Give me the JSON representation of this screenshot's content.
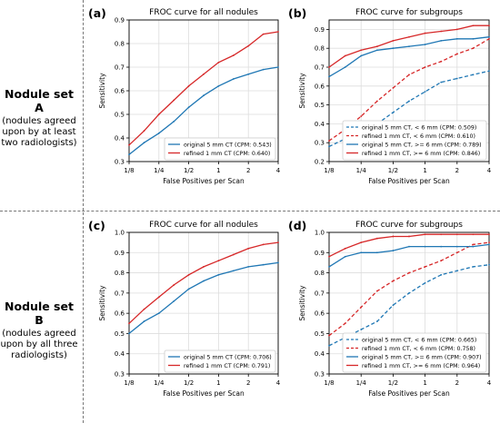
{
  "row_labels": [
    {
      "title": "Nodule set A",
      "lines": [
        "(nodules agreed",
        "upon by at least",
        "two radiologists)"
      ]
    },
    {
      "title": "Nodule set B",
      "lines": [
        "(nodules agreed",
        "upon by all three",
        "radiologists)"
      ]
    }
  ],
  "colors": {
    "blue": "#1f77b4",
    "red": "#d62728",
    "grid": "#dddddd"
  },
  "chart_data": [
    {
      "panel": "(a)",
      "type": "line",
      "title": "FROC curve for all nodules",
      "xlabel": "False Positives per Scan",
      "ylabel": "Sensitivity",
      "xscale": "log2",
      "x_ticks": [
        "1/8",
        "1/4",
        "1/2",
        "1",
        "2",
        "4"
      ],
      "ylim": [
        0.3,
        0.9
      ],
      "y_ticks": [
        "0.3",
        "0.4",
        "0.5",
        "0.6",
        "0.7",
        "0.8",
        "0.9"
      ],
      "grid": true,
      "legend": "lower-right",
      "x": [
        0.125,
        0.177,
        0.25,
        0.354,
        0.5,
        0.707,
        1,
        1.414,
        2,
        2.828,
        4
      ],
      "series": [
        {
          "name": "original 5 mm CT (CPM: 0.543)",
          "color": "blue",
          "style": "solid",
          "values": [
            0.33,
            0.38,
            0.42,
            0.47,
            0.53,
            0.58,
            0.62,
            0.65,
            0.67,
            0.69,
            0.7
          ]
        },
        {
          "name": "refined 1 mm CT (CPM: 0.640)",
          "color": "red",
          "style": "solid",
          "values": [
            0.37,
            0.43,
            0.5,
            0.56,
            0.62,
            0.67,
            0.72,
            0.75,
            0.79,
            0.84,
            0.85
          ]
        }
      ]
    },
    {
      "panel": "(b)",
      "type": "line",
      "title": "FROC curve for subgroups",
      "xlabel": "False Positives per Scan",
      "ylabel": "Sensitivity",
      "xscale": "log2",
      "x_ticks": [
        "1/8",
        "1/4",
        "1/2",
        "1",
        "2",
        "4"
      ],
      "ylim": [
        0.2,
        0.95
      ],
      "y_ticks": [
        "0.2",
        "0.3",
        "0.4",
        "0.5",
        "0.6",
        "0.7",
        "0.8",
        "0.9"
      ],
      "grid": true,
      "legend": "lower-right",
      "x": [
        0.125,
        0.177,
        0.25,
        0.354,
        0.5,
        0.707,
        1,
        1.414,
        2,
        2.828,
        4
      ],
      "series": [
        {
          "name": "original 5 mm CT, < 6 mm (CPM: 0.509)",
          "color": "blue",
          "style": "dashed",
          "values": [
            0.28,
            0.32,
            0.36,
            0.4,
            0.46,
            0.52,
            0.57,
            0.62,
            0.64,
            0.66,
            0.68
          ]
        },
        {
          "name": "refined 1 mm CT, < 6 mm (CPM: 0.610)",
          "color": "red",
          "style": "dashed",
          "values": [
            0.31,
            0.37,
            0.44,
            0.52,
            0.59,
            0.66,
            0.7,
            0.73,
            0.77,
            0.8,
            0.85
          ]
        },
        {
          "name": "original 5 mm CT, >= 6 mm (CPM: 0.789)",
          "color": "blue",
          "style": "solid",
          "values": [
            0.65,
            0.7,
            0.76,
            0.79,
            0.8,
            0.81,
            0.82,
            0.84,
            0.85,
            0.85,
            0.86
          ]
        },
        {
          "name": "refined 1 mm CT, >= 6 mm (CPM: 0.846)",
          "color": "red",
          "style": "solid",
          "values": [
            0.7,
            0.76,
            0.79,
            0.81,
            0.84,
            0.86,
            0.88,
            0.89,
            0.9,
            0.92,
            0.92
          ]
        }
      ]
    },
    {
      "panel": "(c)",
      "type": "line",
      "title": "FROC curve for all nodules",
      "xlabel": "False Positives per Scan",
      "ylabel": "Sensitivity",
      "xscale": "log2",
      "x_ticks": [
        "1/8",
        "1/4",
        "1/2",
        "1",
        "2",
        "4"
      ],
      "ylim": [
        0.3,
        1.0
      ],
      "y_ticks": [
        "0.3",
        "0.4",
        "0.5",
        "0.6",
        "0.7",
        "0.8",
        "0.9",
        "1.0"
      ],
      "grid": true,
      "legend": "lower-right",
      "x": [
        0.125,
        0.177,
        0.25,
        0.354,
        0.5,
        0.707,
        1,
        1.414,
        2,
        2.828,
        4
      ],
      "series": [
        {
          "name": "original 5 mm CT (CPM: 0.706)",
          "color": "blue",
          "style": "solid",
          "values": [
            0.5,
            0.56,
            0.6,
            0.66,
            0.72,
            0.76,
            0.79,
            0.81,
            0.83,
            0.84,
            0.85
          ]
        },
        {
          "name": "refined 1 mm CT (CPM: 0.791)",
          "color": "red",
          "style": "solid",
          "values": [
            0.55,
            0.62,
            0.68,
            0.74,
            0.79,
            0.83,
            0.86,
            0.89,
            0.92,
            0.94,
            0.95
          ]
        }
      ]
    },
    {
      "panel": "(d)",
      "type": "line",
      "title": "FROC curve for subgroups",
      "xlabel": "False Positives per Scan",
      "ylabel": "Sensitivity",
      "xscale": "log2",
      "x_ticks": [
        "1/8",
        "1/4",
        "1/2",
        "1",
        "2",
        "4"
      ],
      "ylim": [
        0.3,
        1.0
      ],
      "y_ticks": [
        "0.3",
        "0.4",
        "0.5",
        "0.6",
        "0.7",
        "0.8",
        "0.9",
        "1.0"
      ],
      "grid": true,
      "legend": "lower-right",
      "x": [
        0.125,
        0.177,
        0.25,
        0.354,
        0.5,
        0.707,
        1,
        1.414,
        2,
        2.828,
        4
      ],
      "series": [
        {
          "name": "original 5 mm CT, < 6 mm (CPM: 0.665)",
          "color": "blue",
          "style": "dashed",
          "values": [
            0.44,
            0.48,
            0.52,
            0.56,
            0.64,
            0.7,
            0.75,
            0.79,
            0.81,
            0.83,
            0.84
          ]
        },
        {
          "name": "refined 1 mm CT, < 6 mm (CPM: 0.758)",
          "color": "red",
          "style": "dashed",
          "values": [
            0.49,
            0.55,
            0.63,
            0.71,
            0.76,
            0.8,
            0.83,
            0.86,
            0.9,
            0.94,
            0.95
          ]
        },
        {
          "name": "original 5 mm CT, >= 6 mm (CPM: 0.907)",
          "color": "blue",
          "style": "solid",
          "values": [
            0.83,
            0.88,
            0.9,
            0.9,
            0.91,
            0.93,
            0.93,
            0.93,
            0.93,
            0.93,
            0.94
          ]
        },
        {
          "name": "refined 1 mm CT, >= 6 mm (CPM: 0.964)",
          "color": "red",
          "style": "solid",
          "values": [
            0.88,
            0.92,
            0.95,
            0.97,
            0.98,
            0.98,
            0.99,
            0.99,
            0.99,
            0.99,
            0.99
          ]
        }
      ]
    }
  ]
}
